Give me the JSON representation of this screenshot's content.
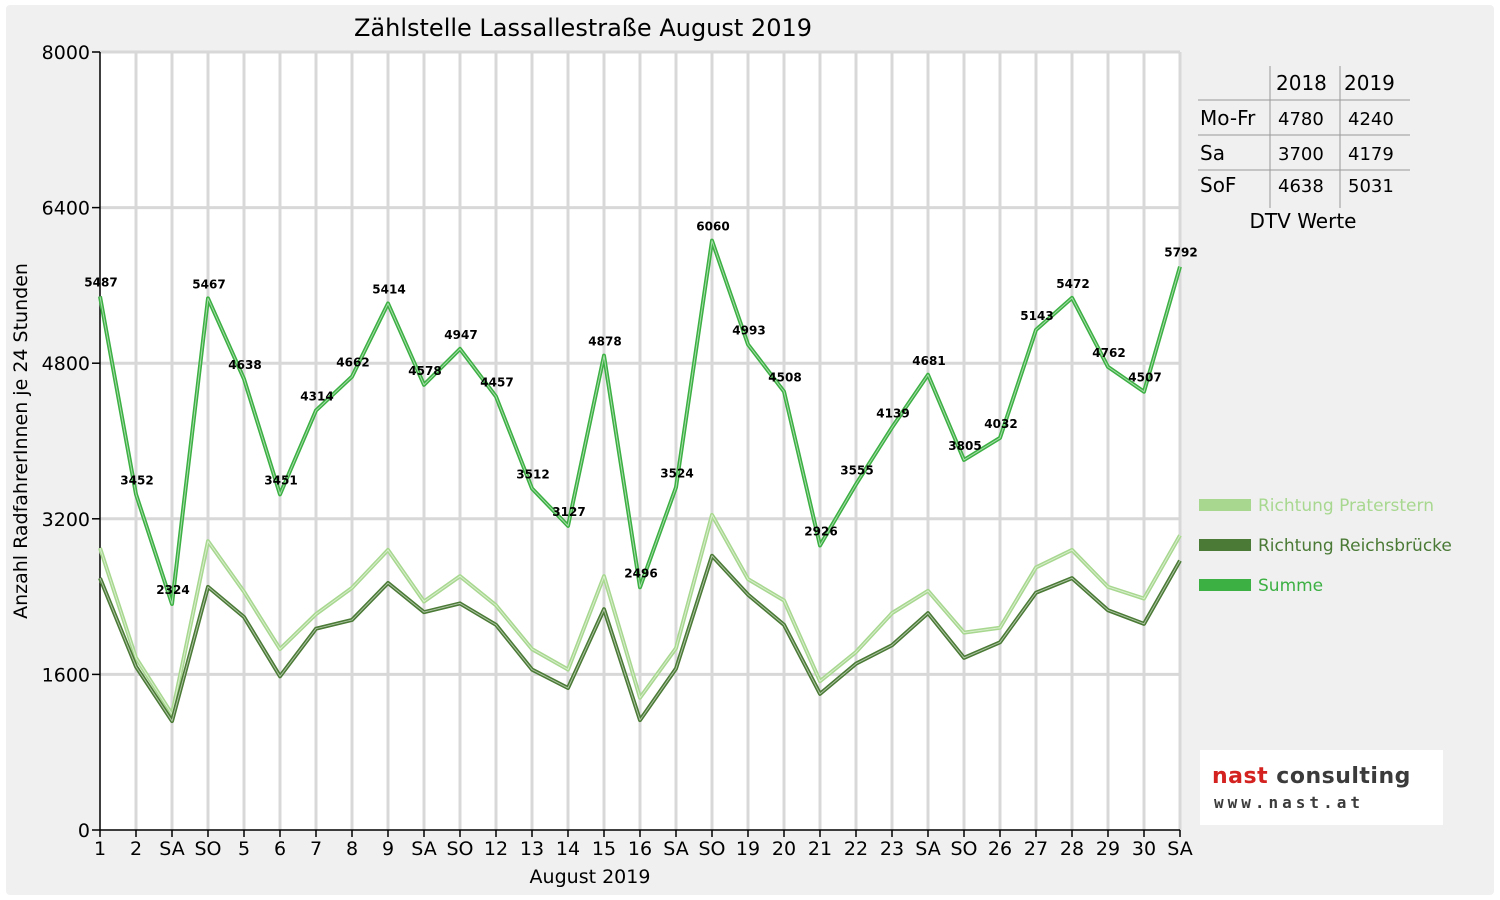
{
  "chart_data": {
    "type": "line",
    "title": "Zählstelle Lassallestraße August 2019",
    "xlabel": "August 2019",
    "ylabel": "Anzahl RadfahrerInnen je 24 Stunden",
    "ylim": [
      0,
      8000
    ],
    "yticks": [
      "0",
      "1600",
      "3200",
      "4800",
      "6400",
      "8000"
    ],
    "grid": true,
    "legend_position": "right",
    "categories": [
      "1",
      "2",
      "SA",
      "SO",
      "5",
      "6",
      "7",
      "8",
      "9",
      "SA",
      "SO",
      "12",
      "13",
      "14",
      "15",
      "16",
      "SA",
      "SO",
      "19",
      "20",
      "21",
      "22",
      "23",
      "SA",
      "SO",
      "26",
      "27",
      "28",
      "29",
      "30",
      "SA"
    ],
    "highlight_categories": [
      3,
      10,
      14,
      17,
      24
    ],
    "highlight_color": "#e8141b",
    "series": [
      {
        "name": "Richtung Praterstern",
        "color": "#a8d890",
        "values": [
          2900,
          1770,
          1190,
          2970,
          2450,
          1860,
          2220,
          2490,
          2880,
          2350,
          2610,
          2310,
          1860,
          1650,
          2610,
          1360,
          1870,
          3240,
          2580,
          2360,
          1530,
          1830,
          2230,
          2460,
          2030,
          2080,
          2700,
          2880,
          2500,
          2380,
          3030
        ],
        "labels": []
      },
      {
        "name": "Richtung Reichsbrücke",
        "color": "#4a7a35",
        "values": [
          2590,
          1680,
          1120,
          2500,
          2190,
          1580,
          2070,
          2160,
          2540,
          2240,
          2330,
          2110,
          1650,
          1460,
          2270,
          1130,
          1660,
          2820,
          2420,
          2110,
          1400,
          1710,
          1900,
          2230,
          1770,
          1930,
          2440,
          2590,
          2260,
          2120,
          2770
        ],
        "labels": []
      },
      {
        "name": "Summe",
        "color": "#3cb043",
        "values": [
          5487,
          3452,
          2324,
          5467,
          4638,
          3451,
          4314,
          4662,
          5414,
          4578,
          4947,
          4457,
          3512,
          3127,
          4878,
          2496,
          3524,
          6060,
          4993,
          4508,
          2926,
          3555,
          4139,
          4681,
          3805,
          4032,
          5143,
          5472,
          4762,
          4507,
          5792
        ],
        "labels": [
          "5487",
          "3452",
          "2324",
          "5467",
          "4638",
          "3451",
          "4314",
          "4662",
          "5414",
          "4578",
          "4947",
          "4457",
          "3512",
          "3127",
          "4878",
          "2496",
          "3524",
          "6060",
          "4993",
          "4508",
          "2926",
          "3555",
          "4139",
          "4681",
          "3805",
          "4032",
          "5143",
          "5472",
          "4762",
          "4507",
          "5792"
        ]
      }
    ]
  },
  "dtv_table": {
    "headers": [
      "",
      "2018",
      "2019"
    ],
    "rows": [
      {
        "label": "Mo-Fr",
        "v2018": "4780",
        "v2019": "4240"
      },
      {
        "label": "Sa",
        "v2018": "3700",
        "v2019": "4179"
      },
      {
        "label": "SoF",
        "v2018": "4638",
        "v2019": "5031"
      }
    ],
    "caption": "DTV Werte"
  },
  "logo": {
    "part1": "nast",
    "part2": " consulting",
    "url": "www.nast.at"
  }
}
